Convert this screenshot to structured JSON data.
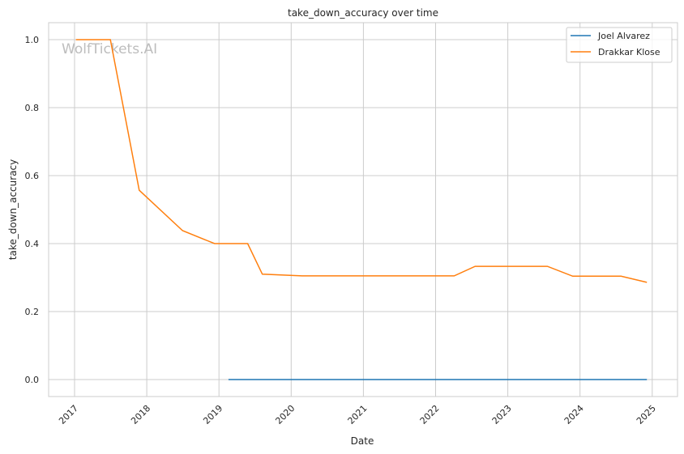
{
  "chart_data": {
    "type": "line",
    "title": "take_down_accuracy over time",
    "xlabel": "Date",
    "ylabel": "take_down_accuracy",
    "watermark": "WolfTickets.AI",
    "xlim": [
      "2016-09-20",
      "2025-03-15"
    ],
    "ylim": [
      -0.05,
      1.05
    ],
    "x_ticks": [
      "2017",
      "2018",
      "2019",
      "2020",
      "2021",
      "2022",
      "2023",
      "2024",
      "2025"
    ],
    "y_ticks": [
      "0.0",
      "0.2",
      "0.4",
      "0.6",
      "0.8",
      "1.0"
    ],
    "grid": true,
    "legend_position": "top-right",
    "series": [
      {
        "name": "Joel Alvarez",
        "color": "#1f77b4",
        "x": [
          "2019-02-18",
          "2024-12-05"
        ],
        "y": [
          0.0,
          0.0
        ]
      },
      {
        "name": "Drakkar Klose",
        "color": "#ff7f0e",
        "x": [
          "2017-01-08",
          "2017-07-01",
          "2017-11-24",
          "2018-07-01",
          "2018-12-10",
          "2019-05-26",
          "2019-08-08",
          "2020-02-25",
          "2022-04-05",
          "2022-07-20",
          "2023-07-20",
          "2023-11-25",
          "2024-07-27",
          "2024-12-05"
        ],
        "y": [
          1.0,
          1.0,
          0.557,
          0.438,
          0.4,
          0.4,
          0.31,
          0.305,
          0.305,
          0.333,
          0.333,
          0.304,
          0.304,
          0.286
        ]
      }
    ]
  }
}
